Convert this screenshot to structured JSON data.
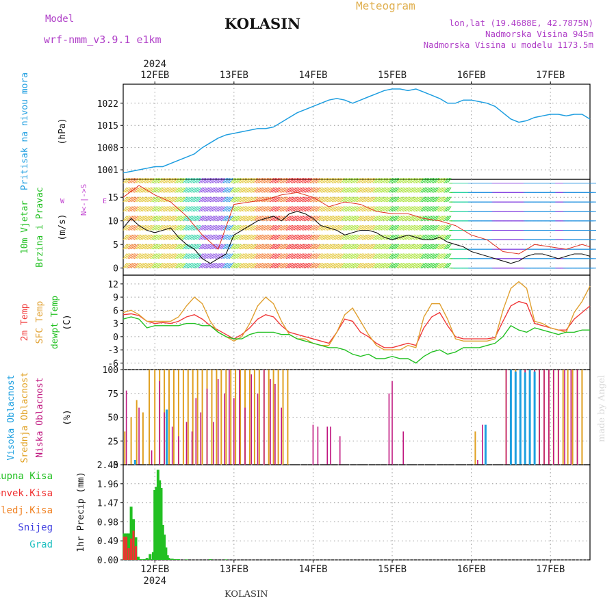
{
  "header": {
    "model_label": "Model",
    "model_name": "wrf-nmm_v3.9.1 e1km",
    "title": "KOLASIN",
    "meteogram_label": "Meteogram",
    "lonlat": "lon,lat (19.4688E, 42.7875N)",
    "elevation": "Nadmorska Visina 945m",
    "model_elevation": "Nadmorska Visina u modelu 1173.5m"
  },
  "footer": {
    "station": "KOLASIN",
    "credit": "made by Angel"
  },
  "colors": {
    "pressure": "#1e9ee0",
    "temp2m": "#f03838",
    "sfc_temp": "#e0a030",
    "dewpoint": "#22c022",
    "cloud_high": "#1ea0e0",
    "cloud_mid": "#e0a020",
    "cloud_low": "#c01880",
    "precip_total": "#22c022",
    "precip_conv": "#f03030",
    "precip_ice": "#f08020",
    "precip_snow": "#4040e0",
    "precip_hail": "#20c0c0",
    "wind_axis_label": "#c040d0"
  },
  "chart_data": [
    {
      "type": "line",
      "panel": "pressure",
      "ylabel_a": "Pritisak na nivou mora",
      "ylabel_b": "(hPa)",
      "yticks": [
        1001,
        1008,
        1015,
        1022
      ],
      "ylim": [
        998,
        1028
      ],
      "xlim_days": [
        11.6,
        17.5
      ],
      "top_axis_year": "2024",
      "x_tick_labels": [
        "12FEB",
        "13FEB",
        "14FEB",
        "15FEB",
        "16FEB",
        "17FEB"
      ],
      "grid": true,
      "series": [
        {
          "x": [
            11.6,
            11.7,
            11.8,
            11.9,
            12.0,
            12.1,
            12.2,
            12.3,
            12.4,
            12.5,
            12.6,
            12.7,
            12.8,
            12.9,
            13.0,
            13.1,
            13.2,
            13.3,
            13.4,
            13.5,
            13.6,
            13.7,
            13.8,
            13.9,
            14.0,
            14.1,
            14.2,
            14.3,
            14.4,
            14.5,
            14.6,
            14.7,
            14.8,
            14.9,
            15.0,
            15.1,
            15.2,
            15.3,
            15.4,
            15.5,
            15.6,
            15.7,
            15.8,
            15.9,
            16.0,
            16.1,
            16.2,
            16.3,
            16.4,
            16.5,
            16.6,
            16.7,
            16.8,
            16.9,
            17.0,
            17.1,
            17.2,
            17.3,
            17.4,
            17.5
          ],
          "y": [
            1000.0,
            1000.5,
            1001.0,
            1001.5,
            1002.0,
            1002.0,
            1003.0,
            1004.0,
            1005.0,
            1006.0,
            1008.0,
            1009.5,
            1011.0,
            1012.0,
            1012.5,
            1013.0,
            1013.5,
            1014.0,
            1014.0,
            1014.5,
            1016.0,
            1017.5,
            1019.0,
            1020.0,
            1021.0,
            1022.0,
            1023.0,
            1023.5,
            1023.0,
            1022.0,
            1023.0,
            1024.0,
            1025.0,
            1026.0,
            1026.5,
            1026.5,
            1026.0,
            1026.5,
            1025.5,
            1024.5,
            1023.5,
            1022.0,
            1022.0,
            1023.0,
            1023.0,
            1022.5,
            1022.0,
            1021.0,
            1019.0,
            1017.0,
            1016.0,
            1016.5,
            1017.5,
            1018.0,
            1018.5,
            1018.5,
            1018.0,
            1018.5,
            1018.5,
            1017.0
          ]
        }
      ]
    },
    {
      "type": "line",
      "panel": "wind",
      "ylabel_a": "10m Vjetar",
      "ylabel_b": "Brzina i Pravac",
      "ylabel_c": "(m/s)",
      "compass_label": "N<-|->S",
      "compass_w": "W",
      "compass_e": "E",
      "yticks": [
        0,
        5,
        10,
        15
      ],
      "ylim": [
        -1.5,
        18.8
      ],
      "xlim_days": [
        11.6,
        17.5
      ],
      "grid": true,
      "series": [
        {
          "name": "wind_speed",
          "x": [
            11.6,
            11.7,
            11.8,
            11.9,
            12.0,
            12.1,
            12.2,
            12.3,
            12.4,
            12.5,
            12.6,
            12.7,
            12.8,
            12.9,
            13.0,
            13.1,
            13.2,
            13.3,
            13.4,
            13.5,
            13.6,
            13.7,
            13.8,
            13.9,
            14.0,
            14.1,
            14.2,
            14.3,
            14.4,
            14.5,
            14.6,
            14.7,
            14.8,
            14.9,
            15.0,
            15.1,
            15.2,
            15.3,
            15.4,
            15.5,
            15.6,
            15.7,
            15.8,
            15.9,
            16.0,
            16.1,
            16.2,
            16.3,
            16.4,
            16.5,
            16.6,
            16.7,
            16.8,
            16.9,
            17.0,
            17.1,
            17.2,
            17.3,
            17.4,
            17.5
          ],
          "y": [
            8.5,
            10.5,
            9.0,
            8.0,
            7.5,
            8.0,
            8.5,
            6.5,
            5.0,
            4.0,
            2.0,
            1.0,
            2.0,
            3.0,
            7.0,
            8.0,
            9.0,
            10.0,
            10.5,
            11.0,
            10.0,
            11.5,
            12.0,
            11.5,
            10.5,
            9.0,
            8.5,
            8.0,
            7.0,
            7.5,
            8.0,
            8.0,
            7.5,
            6.5,
            6.0,
            6.5,
            7.0,
            6.5,
            6.0,
            6.0,
            6.5,
            5.5,
            5.0,
            4.5,
            3.5,
            3.0,
            2.5,
            2.0,
            1.5,
            1.0,
            1.5,
            2.5,
            3.0,
            3.0,
            2.5,
            2.0,
            2.5,
            3.0,
            3.0,
            2.5
          ]
        },
        {
          "name": "wind_gust",
          "x": [
            11.6,
            11.8,
            12.0,
            12.2,
            12.4,
            12.6,
            12.8,
            13.0,
            13.2,
            13.4,
            13.6,
            13.8,
            14.0,
            14.2,
            14.4,
            14.6,
            14.8,
            15.0,
            15.2,
            15.4,
            15.6,
            15.8,
            16.0,
            16.2,
            16.4,
            16.6,
            16.8,
            17.0,
            17.2,
            17.4,
            17.5
          ],
          "y": [
            15.0,
            17.5,
            15.5,
            14.0,
            11.0,
            7.0,
            4.0,
            13.5,
            14.0,
            14.5,
            15.5,
            16.0,
            15.0,
            13.0,
            14.0,
            13.5,
            12.0,
            11.5,
            11.5,
            10.5,
            10.0,
            9.0,
            7.0,
            6.0,
            3.5,
            3.0,
            5.0,
            4.5,
            4.0,
            5.0,
            4.5
          ]
        }
      ]
    },
    {
      "type": "line",
      "panel": "temperature",
      "ylabel_a": "2m Temp",
      "ylabel_b": "SFC Temp",
      "ylabel_c": "dewpt Temp",
      "ylabel_d": "(C)",
      "yticks": [
        -6,
        -3,
        0,
        3,
        6,
        9,
        12
      ],
      "ylim": [
        -7.5,
        14
      ],
      "xlim_days": [
        11.6,
        17.5
      ],
      "grid": true,
      "x": [
        11.6,
        11.7,
        11.8,
        11.9,
        12.0,
        12.1,
        12.2,
        12.3,
        12.4,
        12.5,
        12.6,
        12.7,
        12.8,
        12.9,
        13.0,
        13.1,
        13.2,
        13.3,
        13.4,
        13.5,
        13.6,
        13.7,
        13.8,
        13.9,
        14.0,
        14.1,
        14.2,
        14.3,
        14.4,
        14.5,
        14.6,
        14.7,
        14.8,
        14.9,
        15.0,
        15.1,
        15.2,
        15.3,
        15.4,
        15.5,
        15.6,
        15.7,
        15.8,
        15.9,
        16.0,
        16.1,
        16.2,
        16.3,
        16.4,
        16.5,
        16.6,
        16.7,
        16.8,
        16.9,
        17.0,
        17.1,
        17.2,
        17.3,
        17.4,
        17.5
      ],
      "series": [
        {
          "name": "2m Temp",
          "values": [
            5.0,
            5.2,
            4.8,
            3.5,
            3.0,
            3.2,
            3.0,
            3.5,
            4.5,
            5.0,
            4.0,
            2.5,
            1.5,
            0.5,
            -0.5,
            0.5,
            2.0,
            4.0,
            5.0,
            4.5,
            2.5,
            1.0,
            0.5,
            0.0,
            -0.5,
            -1.0,
            -1.5,
            1.0,
            4.0,
            3.5,
            1.0,
            0.0,
            -1.5,
            -2.5,
            -2.5,
            -2.0,
            -1.5,
            -2.0,
            2.0,
            4.5,
            5.5,
            2.5,
            0.0,
            -0.5,
            -0.5,
            -0.5,
            -0.5,
            -0.2,
            3.5,
            7.0,
            8.0,
            7.5,
            3.0,
            2.5,
            2.0,
            1.5,
            1.5,
            4.0,
            5.5,
            7.0
          ]
        },
        {
          "name": "SFC Temp",
          "values": [
            5.5,
            6.0,
            5.0,
            3.5,
            3.5,
            3.5,
            3.5,
            4.5,
            7.0,
            9.0,
            7.5,
            3.5,
            1.0,
            0.0,
            -1.0,
            0.0,
            3.0,
            7.0,
            9.0,
            7.5,
            3.5,
            0.5,
            -0.5,
            -0.5,
            -1.5,
            -2.0,
            -2.0,
            1.0,
            5.0,
            6.5,
            3.5,
            0.5,
            -2.0,
            -3.0,
            -3.0,
            -3.0,
            -2.0,
            -2.5,
            4.5,
            7.5,
            7.5,
            4.0,
            -0.5,
            -1.0,
            -1.0,
            -1.0,
            -1.0,
            -0.5,
            6.0,
            11.0,
            12.5,
            11.0,
            3.5,
            3.0,
            2.0,
            1.5,
            1.0,
            5.5,
            8.0,
            11.5
          ]
        },
        {
          "name": "dewpt Temp",
          "values": [
            4.0,
            4.5,
            4.0,
            2.0,
            2.5,
            2.5,
            2.5,
            2.5,
            3.0,
            3.0,
            2.5,
            2.5,
            1.0,
            0.0,
            -0.5,
            -0.5,
            0.5,
            1.0,
            1.0,
            1.0,
            0.5,
            0.5,
            -0.5,
            -1.0,
            -1.5,
            -2.0,
            -2.5,
            -2.5,
            -3.0,
            -4.0,
            -4.5,
            -4.0,
            -5.0,
            -5.0,
            -4.5,
            -5.0,
            -5.0,
            -6.0,
            -4.5,
            -3.5,
            -3.0,
            -4.0,
            -3.5,
            -2.5,
            -2.5,
            -2.5,
            -2.0,
            -1.5,
            0.0,
            2.5,
            1.5,
            1.0,
            2.0,
            1.5,
            1.0,
            0.5,
            1.0,
            1.0,
            1.5,
            1.5
          ]
        }
      ]
    },
    {
      "type": "bar",
      "panel": "clouds",
      "ylabel_a": "Visoka Oblacnost",
      "ylabel_b": "Srednja Oblacnost",
      "ylabel_c": "Niska Oblacnost",
      "ylabel_d": "(%)",
      "yticks": [
        0,
        25,
        50,
        75,
        100
      ],
      "ylim": [
        0,
        100
      ],
      "xlim_days": [
        11.6,
        17.5
      ],
      "grid": true,
      "low": {
        "x": [
          11.64,
          11.8,
          11.96,
          12.06,
          12.12,
          12.22,
          12.3,
          12.4,
          12.47,
          12.52,
          12.58,
          12.66,
          12.74,
          12.8,
          12.88,
          12.94,
          13.0,
          13.07,
          13.14,
          13.22,
          13.3,
          13.38,
          13.46,
          13.52,
          13.6,
          14.0,
          14.06,
          14.18,
          14.22,
          14.34,
          14.96,
          15.0,
          15.14,
          16.08,
          16.14,
          16.44,
          16.5,
          16.56,
          16.62,
          16.68,
          16.74,
          16.8,
          16.86,
          16.92,
          16.98,
          17.04,
          17.1,
          17.18,
          17.26,
          17.34
        ],
        "values": [
          78,
          60,
          15,
          88,
          55,
          40,
          30,
          45,
          35,
          70,
          55,
          80,
          45,
          90,
          75,
          100,
          70,
          100,
          60,
          95,
          75,
          100,
          90,
          85,
          60,
          42,
          40,
          40,
          40,
          30,
          75,
          88,
          35,
          5,
          42,
          100,
          100,
          98,
          100,
          100,
          100,
          100,
          100,
          100,
          100,
          100,
          100,
          100,
          100,
          100
        ]
      },
      "mid": {
        "x": [
          11.62,
          11.7,
          11.77,
          11.85,
          11.93,
          12.0,
          12.06,
          12.12,
          12.18,
          12.24,
          12.3,
          12.36,
          12.42,
          12.48,
          12.54,
          12.6,
          12.66,
          12.72,
          12.78,
          12.84,
          12.9,
          12.96,
          13.02,
          13.08,
          13.14,
          13.2,
          13.26,
          13.32,
          13.38,
          13.44,
          13.5,
          13.56,
          13.62,
          13.68,
          16.05,
          16.44,
          16.5,
          16.56,
          16.62,
          16.68,
          16.74,
          16.8,
          16.86,
          16.92,
          16.98,
          17.04,
          17.1,
          17.16,
          17.22,
          17.28,
          17.34,
          17.4
        ],
        "values": [
          35,
          50,
          68,
          55,
          100,
          100,
          100,
          100,
          100,
          100,
          100,
          100,
          100,
          100,
          100,
          100,
          100,
          100,
          100,
          100,
          100,
          100,
          100,
          100,
          100,
          100,
          100,
          100,
          100,
          100,
          100,
          100,
          100,
          100,
          35,
          100,
          100,
          100,
          100,
          100,
          100,
          100,
          100,
          100,
          100,
          100,
          100,
          100,
          100,
          100,
          100,
          100
        ]
      },
      "high": {
        "x": [
          11.75,
          12.15,
          16.18,
          16.5,
          16.56,
          16.62,
          16.68,
          16.74,
          16.8
        ],
        "values": [
          5,
          58,
          42,
          100,
          98,
          100,
          97,
          100,
          98
        ]
      }
    },
    {
      "type": "bar",
      "panel": "precipitation",
      "ylabel": "1hr Precip (mm)",
      "legend": [
        "Ukupna Kisa",
        "Konvek.Kisa",
        "Zaledj.Kisa",
        "Snijeg",
        "Grad"
      ],
      "yticks": [
        0,
        0.49,
        0.98,
        1.47,
        1.96,
        2.45
      ],
      "ylim": [
        0,
        2.45
      ],
      "xlim_days": [
        11.6,
        17.5
      ],
      "grid": true,
      "bottom_axis_year": "2024",
      "total": {
        "x": [
          11.61,
          11.64,
          11.67,
          11.7,
          11.73,
          11.76,
          11.79,
          11.82,
          11.86,
          11.9,
          11.94,
          11.98,
          12.0,
          12.02,
          12.04,
          12.06,
          12.08,
          12.1,
          12.12,
          12.14,
          12.16,
          12.18,
          12.22,
          12.26,
          12.3,
          12.4,
          12.7,
          12.9
        ],
        "values": [
          0.68,
          0.68,
          0.68,
          1.37,
          1.05,
          0.58,
          0.08,
          0.02,
          0.02,
          0.05,
          0.15,
          0.2,
          1.8,
          1.88,
          2.32,
          2.05,
          1.85,
          0.9,
          0.65,
          0.32,
          0.12,
          0.05,
          0.03,
          0.02,
          0.02,
          0.01,
          0.02,
          0.01
        ]
      },
      "convective": {
        "x": [
          11.61,
          11.64,
          11.67,
          11.7,
          11.73,
          11.76
        ],
        "values": [
          0.6,
          0.6,
          0.3,
          0.55,
          0.75,
          0.35
        ]
      }
    }
  ]
}
